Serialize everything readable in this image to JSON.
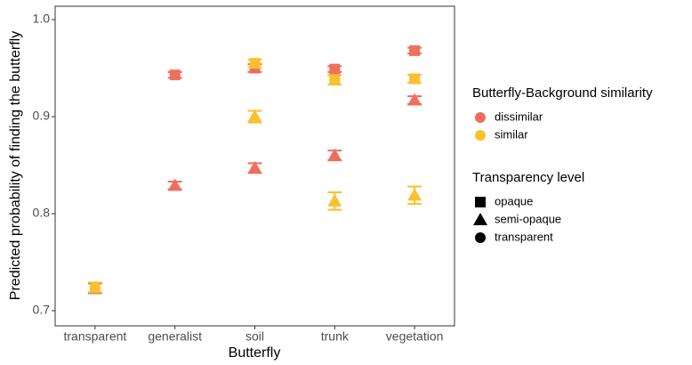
{
  "chart_data": {
    "type": "scatter",
    "x_label": "Butterfly",
    "y_label": "Predicted probability of finding the butterfly",
    "categories": [
      "transparent",
      "generalist",
      "soil",
      "trunk",
      "vegetation"
    ],
    "ylim": [
      0.6844,
      1.0138
    ],
    "yticks": [
      0.7,
      0.8,
      0.9,
      {
        "value": 1.0,
        "label": "1.0"
      }
    ],
    "legends": [
      {
        "title": "Butterfly-Background similarity",
        "entries": [
          {
            "label": "dissimilar",
            "color": "#ef6f5e"
          },
          {
            "label": "similar",
            "color": "#fbc02d"
          }
        ]
      },
      {
        "title": "Transparency level",
        "entries": [
          {
            "label": "opaque",
            "shape": "square"
          },
          {
            "label": "semi-opaque",
            "shape": "triangle"
          },
          {
            "label": "transparent",
            "shape": "circle"
          }
        ]
      }
    ],
    "series": [
      {
        "similarity": "dissimilar",
        "transparency": "transparent",
        "values": [
          0.723,
          null,
          null,
          null,
          null
        ],
        "errors": [
          0.005,
          null,
          null,
          null,
          null
        ]
      },
      {
        "similarity": "similar",
        "transparency": "transparent",
        "values": [
          0.724,
          null,
          null,
          null,
          null
        ],
        "errors": [
          0.005,
          null,
          null,
          null,
          null
        ]
      },
      {
        "similarity": "dissimilar",
        "transparency": "opaque",
        "values": [
          null,
          0.943,
          0.95,
          0.949,
          0.968
        ],
        "errors": [
          null,
          0.003,
          0.004,
          0.003,
          0.003
        ]
      },
      {
        "similarity": "dissimilar",
        "transparency": "semi-opaque",
        "values": [
          null,
          0.829,
          0.847,
          0.86,
          0.917
        ],
        "errors": [
          null,
          0.004,
          0.005,
          0.005,
          0.004
        ]
      },
      {
        "similarity": "similar",
        "transparency": "opaque",
        "values": [
          null,
          null,
          0.955,
          0.938,
          0.939
        ],
        "errors": [
          null,
          null,
          0.004,
          0.005,
          0.004
        ]
      },
      {
        "similarity": "similar",
        "transparency": "semi-opaque",
        "values": [
          null,
          null,
          0.9,
          0.813,
          0.819
        ],
        "errors": [
          null,
          null,
          0.006,
          0.009,
          0.009
        ]
      }
    ]
  }
}
